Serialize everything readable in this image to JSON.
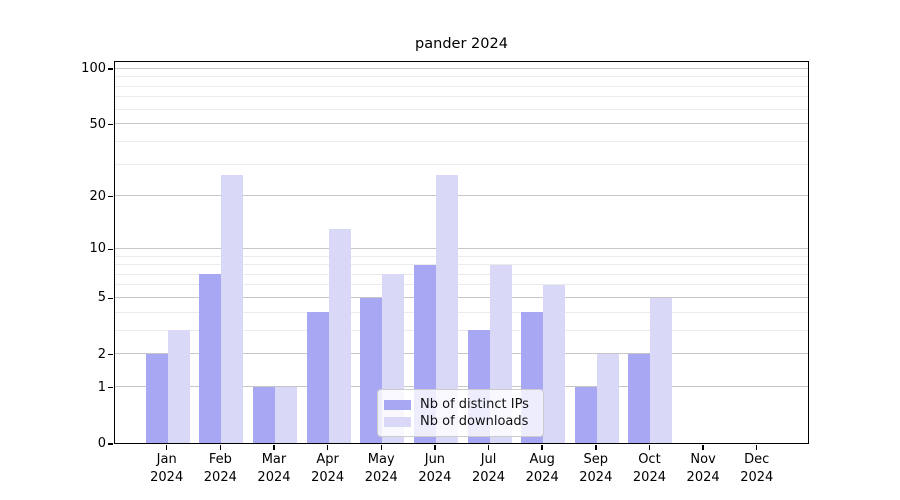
{
  "title": "pander 2024",
  "chart_data": {
    "type": "bar",
    "title": "pander 2024",
    "categories": [
      "Jan",
      "Feb",
      "Mar",
      "Apr",
      "May",
      "Jun",
      "Jul",
      "Aug",
      "Sep",
      "Oct",
      "Nov",
      "Dec"
    ],
    "year_label": "2024",
    "series": [
      {
        "name": "Nb of distinct IPs",
        "color": "#a7a7f4",
        "values": [
          2,
          7,
          1,
          4,
          5,
          8,
          3,
          4,
          1,
          2,
          0,
          0
        ]
      },
      {
        "name": "Nb of downloads",
        "color": "#d9d9f7",
        "values": [
          3,
          26,
          1,
          13,
          7,
          26,
          8,
          6,
          2,
          5,
          0,
          0
        ]
      }
    ],
    "xlabel": "",
    "ylabel": "",
    "y_axis": {
      "scale": "log1p",
      "ylim": [
        0,
        110
      ],
      "major_ticks": [
        0,
        1,
        2,
        5,
        10,
        20,
        50,
        100
      ],
      "minor_gridlines": [
        3,
        4,
        6,
        7,
        8,
        9,
        30,
        40,
        60,
        70,
        80,
        90
      ]
    },
    "grid": "horizontal",
    "legend_position": "lower-center",
    "colors": {
      "major_grid": "#c6c6c6",
      "minor_grid": "#ebebeb",
      "axis": "#000000",
      "background": "#ffffff"
    }
  }
}
